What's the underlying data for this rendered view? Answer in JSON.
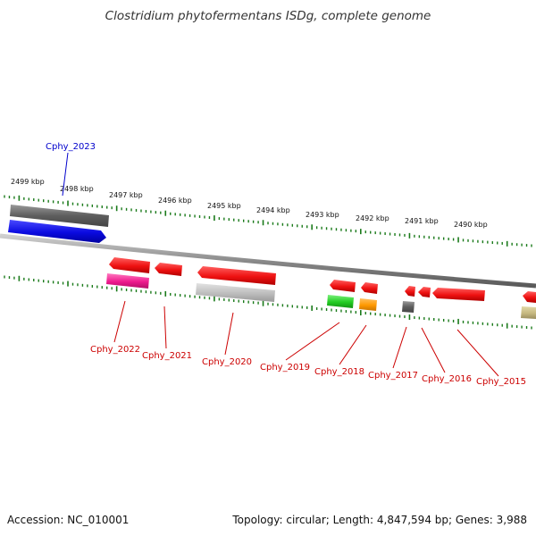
{
  "title": "Clostridium phytofermentans ISDg, complete genome",
  "accession_label": "Accession: NC_010001",
  "topology_label": "Topology: circular; Length: 4,847,594 bp; Genes: 3,988",
  "colors": {
    "backbone": "#8a8a8a",
    "tick": "#1a7a1a",
    "gene_red": "#ee1111",
    "label_red": "#cc0000",
    "label_blue": "#0000cc"
  },
  "kbp_labels": [
    "2499 kbp",
    "2498 kbp",
    "2497 kbp",
    "2496 kbp",
    "2495 kbp",
    "2494 kbp",
    "2493 kbp",
    "2492 kbp",
    "2491 kbp",
    "2490 kbp"
  ],
  "gene_labels": [
    {
      "text": "Cphy_2023",
      "color": "#0000cc"
    },
    {
      "text": "Cphy_2022",
      "color": "#cc0000"
    },
    {
      "text": "Cphy_2021",
      "color": "#cc0000"
    },
    {
      "text": "Cphy_2020",
      "color": "#cc0000"
    },
    {
      "text": "Cphy_2019",
      "color": "#cc0000"
    },
    {
      "text": "Cphy_2018",
      "color": "#cc0000"
    },
    {
      "text": "Cphy_2017",
      "color": "#cc0000"
    },
    {
      "text": "Cphy_2016",
      "color": "#cc0000"
    },
    {
      "text": "Cphy_2015",
      "color": "#cc0000"
    }
  ]
}
